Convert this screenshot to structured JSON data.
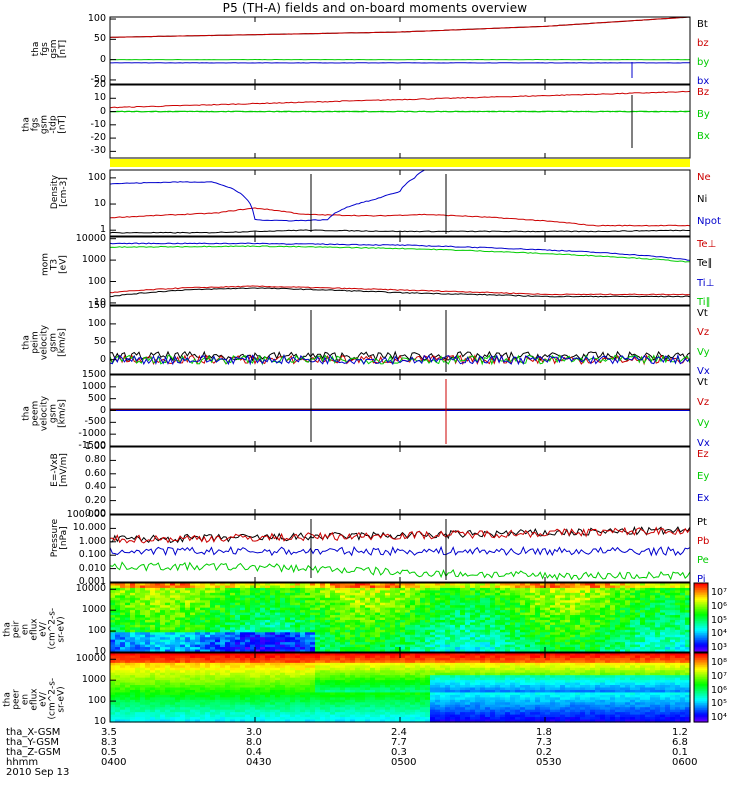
{
  "title": "P5 (TH-A) fields and on-board moments overview",
  "date": "2010 Sep 13",
  "colors": {
    "black": "#000000",
    "red": "#cc0000",
    "green": "#00cc00",
    "blue": "#0000cc",
    "yellow": "#ffff00"
  },
  "chart_data": [
    {
      "panel": "fgs_gsm",
      "type": "line",
      "ylabel": "tha\nfgs\ngsm\n[nT]",
      "ylim": [
        -60,
        105
      ],
      "yticks": [
        100,
        50,
        0,
        -50
      ],
      "series": [
        {
          "name": "Bt",
          "color": "#000000",
          "x": [
            0,
            60,
            90,
            120
          ],
          "y": [
            55,
            68,
            82,
            105
          ]
        },
        {
          "name": "bz",
          "color": "#cc0000",
          "x": [
            0,
            60,
            90,
            120
          ],
          "y": [
            55,
            68,
            82,
            105
          ]
        },
        {
          "name": "by",
          "color": "#00cc00",
          "x": [
            0,
            120
          ],
          "y": [
            0,
            0
          ]
        },
        {
          "name": "bx",
          "color": "#0000cc",
          "x": [
            0,
            120
          ],
          "y": [
            -8,
            -8
          ]
        }
      ]
    },
    {
      "panel": "fgs_gsm_tdp",
      "type": "line",
      "ylabel": "tha\nfgs\ngsm\n-tdp\n[nT]",
      "ylim": [
        -35,
        20
      ],
      "yticks": [
        20,
        10,
        0,
        -10,
        -20,
        -30
      ],
      "series": [
        {
          "name": "Bz",
          "color": "#cc0000",
          "x": [
            0,
            120
          ],
          "y": [
            3,
            15
          ]
        },
        {
          "name": "By",
          "color": "#00cc00",
          "x": [
            0,
            120
          ],
          "y": [
            0,
            0
          ]
        },
        {
          "name": "Bx",
          "color": "#00cc00",
          "x": [
            0,
            120
          ],
          "y": [
            0,
            0
          ]
        }
      ]
    },
    {
      "panel": "density",
      "type": "line",
      "scale": "log",
      "ylabel": "Density\n[cm-3]",
      "ylim": [
        0.6,
        200
      ],
      "yticks": [
        100,
        10,
        1
      ],
      "series": [
        {
          "name": "Ne",
          "color": "#cc0000",
          "x": [
            0,
            15,
            22,
            30,
            40,
            55,
            65,
            80,
            100,
            120
          ],
          "y": [
            3,
            4,
            4.5,
            7,
            4,
            3.5,
            4,
            3,
            1.5,
            1.5
          ]
        },
        {
          "name": "Ni",
          "color": "#000000",
          "x": [
            0,
            20,
            40,
            60,
            80,
            100,
            120
          ],
          "y": [
            0.8,
            0.8,
            1.0,
            0.9,
            0.9,
            0.9,
            1.0
          ]
        },
        {
          "name": "Npot",
          "color": "#0000cc",
          "x": [
            0,
            15,
            21,
            30,
            37,
            45,
            55,
            60,
            63,
            65
          ],
          "y": [
            60,
            70,
            70,
            2.5,
            2.3,
            2.5,
            15,
            30,
            100,
            200
          ]
        }
      ]
    },
    {
      "panel": "mom_temp",
      "type": "line",
      "scale": "log",
      "ylabel": "mom\nT3\n[eV]",
      "ylim": [
        8,
        12000
      ],
      "yticks": [
        10000,
        1000,
        100,
        10
      ],
      "series": [
        {
          "name": "Te⊥",
          "color": "#cc0000",
          "x": [
            0,
            15,
            30,
            60,
            90,
            120
          ],
          "y": [
            30,
            50,
            60,
            40,
            25,
            25
          ]
        },
        {
          "name": "Te∥",
          "color": "#000000",
          "x": [
            0,
            15,
            30,
            60,
            90,
            120
          ],
          "y": [
            20,
            40,
            50,
            30,
            20,
            20
          ]
        },
        {
          "name": "Ti⊥",
          "color": "#0000cc",
          "x": [
            0,
            30,
            60,
            90,
            120
          ],
          "y": [
            6000,
            6000,
            5000,
            3000,
            1000
          ]
        },
        {
          "name": "Ti∥",
          "color": "#00cc00",
          "x": [
            0,
            30,
            60,
            90,
            120
          ],
          "y": [
            4000,
            4500,
            3500,
            2000,
            800
          ]
        }
      ]
    },
    {
      "panel": "peim_velocity",
      "type": "line",
      "ylabel": "tha\npeim\nvelocity\ngsm\n[km/s]",
      "ylim": [
        -40,
        150
      ],
      "yticks": [
        150,
        100,
        50,
        0
      ],
      "series": [
        {
          "name": "Vt",
          "color": "#000000",
          "x": [
            0,
            120
          ],
          "y": [
            10,
            10
          ]
        },
        {
          "name": "Vz",
          "color": "#cc0000",
          "x": [
            0,
            120
          ],
          "y": [
            0,
            0
          ]
        },
        {
          "name": "Vy",
          "color": "#00cc00",
          "x": [
            0,
            120
          ],
          "y": [
            0,
            0
          ]
        },
        {
          "name": "Vx",
          "color": "#0000cc",
          "x": [
            0,
            120
          ],
          "y": [
            0,
            0
          ]
        }
      ]
    },
    {
      "panel": "peem_velocity",
      "type": "line",
      "ylabel": "tha\npeem\nvelocity\ngsm\n[km/s]",
      "ylim": [
        -1500,
        1500
      ],
      "yticks": [
        1500,
        1000,
        500,
        0,
        -500,
        -1000,
        -1500
      ],
      "series": [
        {
          "name": "Vt",
          "color": "#000000",
          "x": [
            0,
            120
          ],
          "y": [
            60,
            60
          ]
        },
        {
          "name": "Vz",
          "color": "#cc0000",
          "x": [
            0,
            120
          ],
          "y": [
            20,
            20
          ]
        },
        {
          "name": "Vy",
          "color": "#00cc00",
          "x": [
            0,
            120
          ],
          "y": [
            0,
            0
          ]
        },
        {
          "name": "Vx",
          "color": "#0000cc",
          "x": [
            0,
            120
          ],
          "y": [
            0,
            0
          ]
        }
      ]
    },
    {
      "panel": "efield",
      "type": "line",
      "ylabel": "E=-VxB\n[mV/m]",
      "ylim": [
        0,
        1
      ],
      "yticks": [
        "1.00",
        "0.80",
        "0.60",
        "0.40",
        "0.20",
        "0.00"
      ],
      "series": [
        {
          "name": "Ez",
          "color": "#cc0000"
        },
        {
          "name": "Ey",
          "color": "#00cc00"
        },
        {
          "name": "Ex",
          "color": "#0000cc"
        }
      ]
    },
    {
      "panel": "pressure",
      "type": "line",
      "scale": "log",
      "ylabel": "Pressure\n[nPa]",
      "ylim": [
        0.001,
        100
      ],
      "yticks": [
        "100.000",
        "10.000",
        "1.000",
        "0.100",
        "0.010",
        "0.001"
      ],
      "series": [
        {
          "name": "Pt",
          "color": "#000000",
          "x": [
            0,
            30,
            60,
            90,
            120
          ],
          "y": [
            1.5,
            2,
            3,
            4.5,
            7
          ]
        },
        {
          "name": "Pb",
          "color": "#cc0000",
          "x": [
            0,
            30,
            60,
            90,
            120
          ],
          "y": [
            1.5,
            2,
            3,
            4.5,
            7
          ]
        },
        {
          "name": "Pe",
          "color": "#00cc00",
          "x": [
            0,
            30,
            60,
            90,
            120
          ],
          "y": [
            0.015,
            0.013,
            0.005,
            0.003,
            0.003
          ]
        },
        {
          "name": "Pi",
          "color": "#0000cc",
          "x": [
            0,
            30,
            60,
            90,
            120
          ],
          "y": [
            0.2,
            0.2,
            0.2,
            0.2,
            0.2
          ]
        }
      ]
    },
    {
      "panel": "peir_spectrogram",
      "type": "heatmap",
      "ylabel": "tha\npeir\nen\neflux\neV/\n(cm^2-s-\nsr-eV)",
      "yticks": [
        10000,
        1000,
        100,
        10
      ],
      "colorbar_ticks": [
        "10⁷",
        "10⁶",
        "10⁵",
        "10⁴",
        "10³"
      ]
    },
    {
      "panel": "peer_spectrogram",
      "type": "heatmap",
      "ylabel": "tha\npeer\nen\neflux\neV/\n(cm^2-s-\nsr-eV)",
      "yticks": [
        10000,
        1000,
        100,
        10
      ],
      "colorbar_ticks": [
        "10⁸",
        "10⁷",
        "10⁶",
        "10⁵",
        "10⁴"
      ]
    }
  ],
  "ephemeris": {
    "labels": [
      "tha_X-GSM",
      "tha_Y-GSM",
      "tha_Z-GSM",
      "hhmm"
    ],
    "columns": [
      [
        "3.5",
        "8.3",
        "0.5",
        "0400"
      ],
      [
        "3.0",
        "8.0",
        "0.4",
        "0430"
      ],
      [
        "2.4",
        "7.7",
        "0.3",
        "0500"
      ],
      [
        "1.8",
        "7.3",
        "0.2",
        "0530"
      ],
      [
        "1.2",
        "6.8",
        "0.1",
        "0600"
      ]
    ]
  }
}
